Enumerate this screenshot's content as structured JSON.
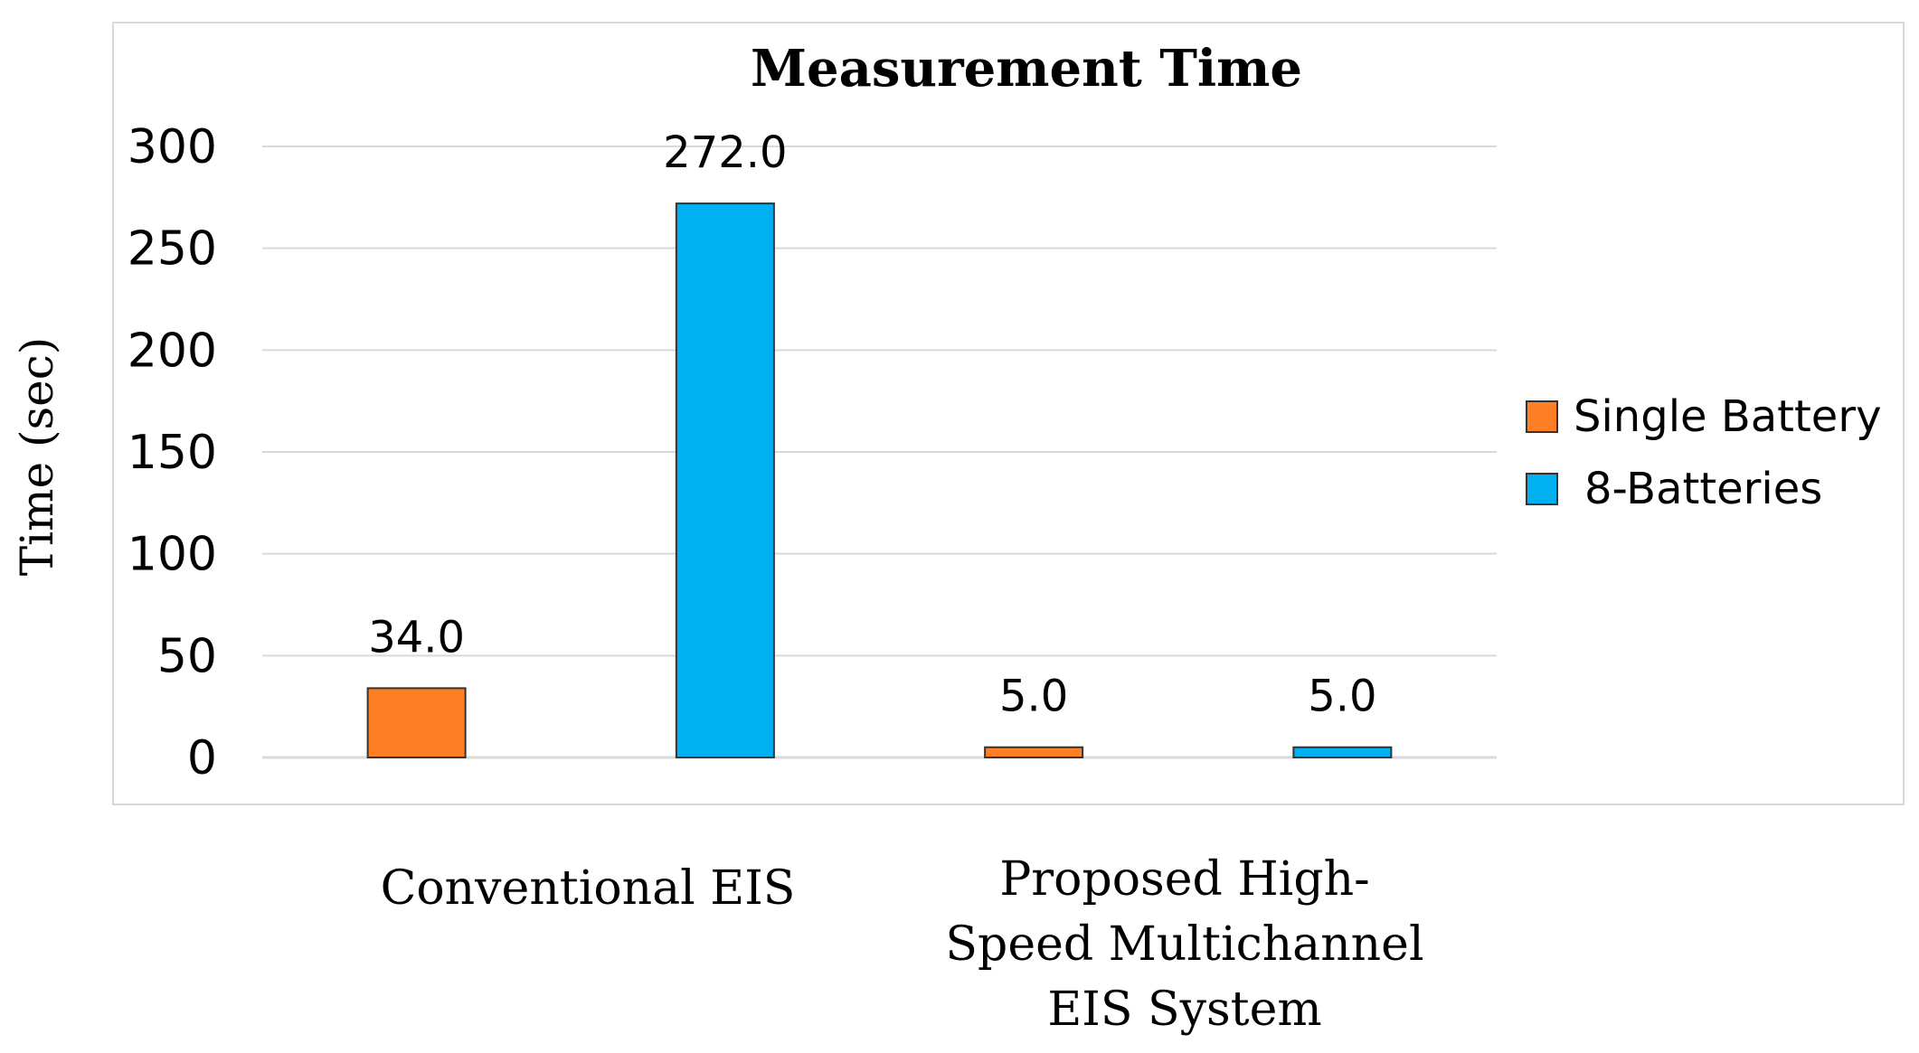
{
  "chart_data": {
    "type": "bar",
    "title": "Measurement Time",
    "ylabel": "Time (sec)",
    "xlabel": "",
    "ylim": [
      0,
      300
    ],
    "yticks": [
      "0",
      "50",
      "100",
      "150",
      "200",
      "250",
      "300"
    ],
    "categories": [
      "Conventional EIS",
      "Proposed High- Speed Multichannel EIS System"
    ],
    "category_lines": [
      [
        "Conventional EIS"
      ],
      [
        "Proposed High-",
        "Speed  Multichannel",
        "EIS System"
      ]
    ],
    "grid": true,
    "legend_position": "right",
    "series": [
      {
        "name": "Single Battery",
        "color": "#FF7F27",
        "values": [
          34.0,
          5.0
        ],
        "labels": [
          "34.0",
          "5.0"
        ]
      },
      {
        "name": "8-Batteries",
        "color": "#00B0F0",
        "values": [
          272.0,
          5.0
        ],
        "labels": [
          "272.0",
          "5.0"
        ]
      }
    ]
  }
}
